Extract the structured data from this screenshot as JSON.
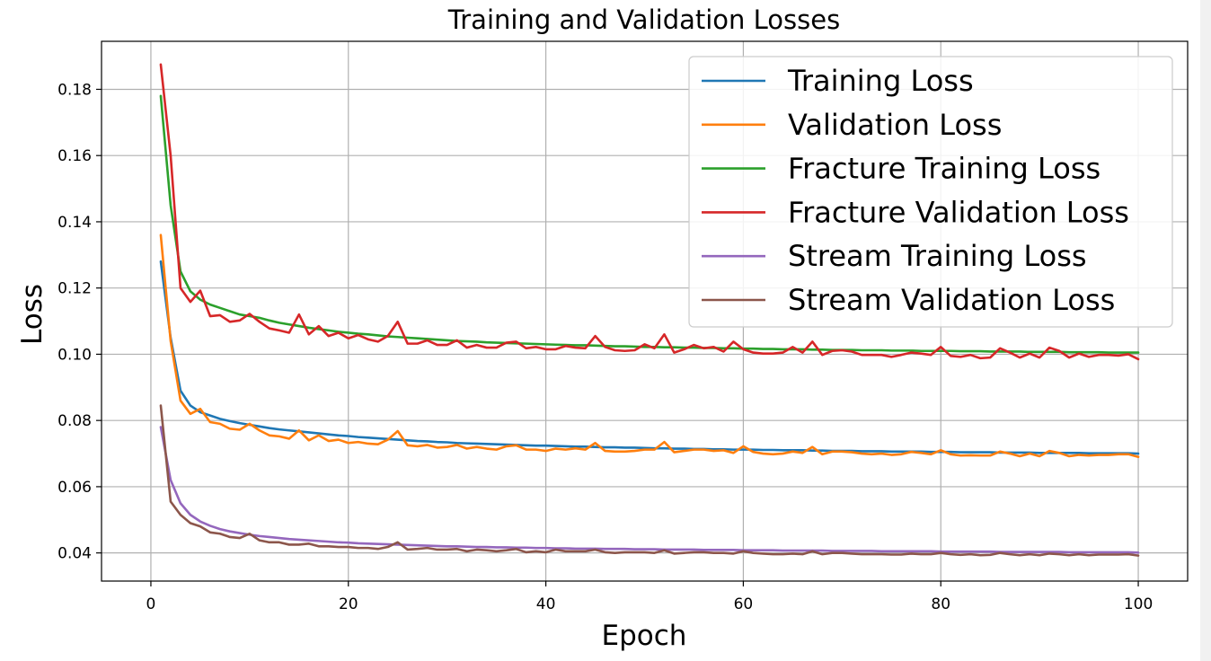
{
  "chart_data": {
    "type": "line",
    "title": "Training and Validation Losses",
    "xlabel": "Epoch",
    "ylabel": "Loss",
    "xlim": [
      -5,
      105
    ],
    "ylim": [
      0.0315,
      0.1945
    ],
    "xticks": [
      0,
      20,
      40,
      60,
      80,
      100
    ],
    "yticks": [
      0.04,
      0.06,
      0.08,
      0.1,
      0.12,
      0.14,
      0.16,
      0.18
    ],
    "xtick_labels": [
      "0",
      "20",
      "40",
      "60",
      "80",
      "100"
    ],
    "ytick_labels": [
      "0.04",
      "0.06",
      "0.08",
      "0.10",
      "0.12",
      "0.14",
      "0.16",
      "0.18"
    ],
    "grid": true,
    "legend_position": "top-right",
    "x": [
      1,
      2,
      3,
      4,
      5,
      6,
      7,
      8,
      9,
      10,
      11,
      12,
      13,
      14,
      15,
      16,
      17,
      18,
      19,
      20,
      21,
      22,
      23,
      24,
      25,
      26,
      27,
      28,
      29,
      30,
      31,
      32,
      33,
      34,
      35,
      36,
      37,
      38,
      39,
      40,
      41,
      42,
      43,
      44,
      45,
      46,
      47,
      48,
      49,
      50,
      51,
      52,
      53,
      54,
      55,
      56,
      57,
      58,
      59,
      60,
      61,
      62,
      63,
      64,
      65,
      66,
      67,
      68,
      69,
      70,
      71,
      72,
      73,
      74,
      75,
      76,
      77,
      78,
      79,
      80,
      81,
      82,
      83,
      84,
      85,
      86,
      87,
      88,
      89,
      90,
      91,
      92,
      93,
      94,
      95,
      96,
      97,
      98,
      99,
      100
    ],
    "series": [
      {
        "name": "Training Loss",
        "color": "#1f77b4",
        "values": [
          0.128,
          0.105,
          0.089,
          0.0845,
          0.0825,
          0.0815,
          0.0805,
          0.0798,
          0.0792,
          0.0787,
          0.0782,
          0.0777,
          0.0773,
          0.077,
          0.0767,
          0.0764,
          0.0761,
          0.0758,
          0.0755,
          0.0753,
          0.075,
          0.0748,
          0.0746,
          0.0744,
          0.0742,
          0.074,
          0.0738,
          0.0737,
          0.0735,
          0.0734,
          0.0732,
          0.0731,
          0.073,
          0.0729,
          0.0728,
          0.0727,
          0.0726,
          0.0725,
          0.0724,
          0.0724,
          0.0723,
          0.0722,
          0.0721,
          0.0721,
          0.072,
          0.0719,
          0.0719,
          0.0718,
          0.0718,
          0.0717,
          0.0716,
          0.0716,
          0.0715,
          0.0715,
          0.0714,
          0.0714,
          0.0713,
          0.0713,
          0.0712,
          0.0712,
          0.0712,
          0.0711,
          0.0711,
          0.071,
          0.071,
          0.071,
          0.0709,
          0.0709,
          0.0708,
          0.0708,
          0.0708,
          0.0707,
          0.0707,
          0.0707,
          0.0706,
          0.0706,
          0.0706,
          0.0706,
          0.0705,
          0.0705,
          0.0705,
          0.0704,
          0.0704,
          0.0704,
          0.0704,
          0.0703,
          0.0703,
          0.0703,
          0.0703,
          0.0702,
          0.0702,
          0.0702,
          0.0702,
          0.0702,
          0.0701,
          0.0701,
          0.0701,
          0.0701,
          0.0701,
          0.07
        ]
      },
      {
        "name": "Validation Loss",
        "color": "#ff7f0e",
        "values": [
          0.136,
          0.104,
          0.086,
          0.082,
          0.0835,
          0.0795,
          0.079,
          0.0775,
          0.0772,
          0.079,
          0.077,
          0.0755,
          0.0752,
          0.0745,
          0.077,
          0.074,
          0.0755,
          0.0738,
          0.0742,
          0.0732,
          0.0735,
          0.073,
          0.0728,
          0.0742,
          0.0768,
          0.0725,
          0.0722,
          0.0726,
          0.0718,
          0.072,
          0.0726,
          0.0715,
          0.072,
          0.0715,
          0.0712,
          0.0722,
          0.0725,
          0.0712,
          0.0712,
          0.0708,
          0.0715,
          0.0712,
          0.0716,
          0.0712,
          0.0732,
          0.0708,
          0.0706,
          0.0706,
          0.0708,
          0.0712,
          0.0712,
          0.0735,
          0.0704,
          0.0708,
          0.0712,
          0.0712,
          0.0708,
          0.071,
          0.0702,
          0.0722,
          0.0705,
          0.07,
          0.0698,
          0.07,
          0.0706,
          0.0702,
          0.072,
          0.0698,
          0.0706,
          0.0706,
          0.0704,
          0.07,
          0.0698,
          0.07,
          0.0696,
          0.0698,
          0.0705,
          0.0702,
          0.0698,
          0.071,
          0.0698,
          0.0694,
          0.0695,
          0.0694,
          0.0694,
          0.0706,
          0.07,
          0.0692,
          0.07,
          0.0692,
          0.0708,
          0.0702,
          0.0692,
          0.0696,
          0.0694,
          0.0696,
          0.0696,
          0.0698,
          0.0698,
          0.069
        ]
      },
      {
        "name": "Fracture Training Loss",
        "color": "#2ca02c",
        "values": [
          0.178,
          0.145,
          0.125,
          0.119,
          0.1165,
          0.115,
          0.114,
          0.113,
          0.112,
          0.1115,
          0.111,
          0.1102,
          0.1095,
          0.109,
          0.1085,
          0.108,
          0.1076,
          0.1072,
          0.1068,
          0.1065,
          0.1062,
          0.106,
          0.1057,
          0.1054,
          0.1052,
          0.105,
          0.1048,
          0.1046,
          0.1044,
          0.1042,
          0.104,
          0.1039,
          0.1038,
          0.1036,
          0.1035,
          0.1034,
          0.1033,
          0.1032,
          0.1031,
          0.103,
          0.1029,
          0.1028,
          0.1027,
          0.1027,
          0.1026,
          0.1025,
          0.1024,
          0.1024,
          0.1023,
          0.1022,
          0.1022,
          0.1021,
          0.1021,
          0.102,
          0.102,
          0.1019,
          0.1019,
          0.1018,
          0.1018,
          0.1017,
          0.1017,
          0.1016,
          0.1016,
          0.1015,
          0.1015,
          0.1015,
          0.1014,
          0.1014,
          0.1013,
          0.1013,
          0.1013,
          0.1012,
          0.1012,
          0.1012,
          0.1011,
          0.1011,
          0.1011,
          0.101,
          0.101,
          0.101,
          0.101,
          0.1009,
          0.1009,
          0.1009,
          0.1008,
          0.1008,
          0.1008,
          0.1008,
          0.1007,
          0.1007,
          0.1007,
          0.1007,
          0.1006,
          0.1006,
          0.1006,
          0.1006,
          0.1005,
          0.1005,
          0.1005,
          0.1005
        ]
      },
      {
        "name": "Fracture Validation Loss",
        "color": "#d62728",
        "values": [
          0.1875,
          0.16,
          0.12,
          0.1158,
          0.1192,
          0.1115,
          0.1118,
          0.1098,
          0.1102,
          0.1122,
          0.1098,
          0.1078,
          0.1072,
          0.1065,
          0.112,
          0.106,
          0.1085,
          0.1055,
          0.1065,
          0.1048,
          0.1058,
          0.1045,
          0.1038,
          0.1055,
          0.1098,
          0.1032,
          0.1032,
          0.1042,
          0.1028,
          0.1028,
          0.1042,
          0.102,
          0.1028,
          0.102,
          0.102,
          0.1035,
          0.1038,
          0.1018,
          0.1022,
          0.1015,
          0.1015,
          0.1025,
          0.102,
          0.1018,
          0.1055,
          0.1022,
          0.1012,
          0.101,
          0.1012,
          0.103,
          0.1018,
          0.106,
          0.1005,
          0.1015,
          0.1028,
          0.1018,
          0.1022,
          0.1008,
          0.1038,
          0.1015,
          0.1005,
          0.1002,
          0.1002,
          0.1005,
          0.1022,
          0.1005,
          0.1038,
          0.0998,
          0.101,
          0.1012,
          0.1008,
          0.0998,
          0.0998,
          0.0998,
          0.0992,
          0.0998,
          0.1005,
          0.1002,
          0.0998,
          0.1022,
          0.0995,
          0.0992,
          0.0998,
          0.0988,
          0.099,
          0.1018,
          0.1005,
          0.099,
          0.1002,
          0.099,
          0.102,
          0.101,
          0.099,
          0.1002,
          0.0992,
          0.0998,
          0.0998,
          0.0996,
          0.1,
          0.0985
        ]
      },
      {
        "name": "Stream Training Loss",
        "color": "#9467bd",
        "values": [
          0.078,
          0.062,
          0.055,
          0.0515,
          0.0495,
          0.0482,
          0.0472,
          0.0465,
          0.046,
          0.0455,
          0.0451,
          0.0448,
          0.0445,
          0.0442,
          0.044,
          0.0438,
          0.0436,
          0.0434,
          0.0432,
          0.0431,
          0.0429,
          0.0428,
          0.0427,
          0.0426,
          0.0425,
          0.0424,
          0.0423,
          0.0422,
          0.0421,
          0.042,
          0.042,
          0.0419,
          0.0418,
          0.0418,
          0.0417,
          0.0417,
          0.0416,
          0.0416,
          0.0415,
          0.0415,
          0.0414,
          0.0414,
          0.0413,
          0.0413,
          0.0413,
          0.0412,
          0.0412,
          0.0412,
          0.0411,
          0.0411,
          0.0411,
          0.041,
          0.041,
          0.041,
          0.041,
          0.0409,
          0.0409,
          0.0409,
          0.0409,
          0.0408,
          0.0408,
          0.0408,
          0.0408,
          0.0407,
          0.0407,
          0.0407,
          0.0407,
          0.0407,
          0.0406,
          0.0406,
          0.0406,
          0.0406,
          0.0406,
          0.0405,
          0.0405,
          0.0405,
          0.0405,
          0.0405,
          0.0405,
          0.0404,
          0.0404,
          0.0404,
          0.0404,
          0.0404,
          0.0404,
          0.0403,
          0.0403,
          0.0403,
          0.0403,
          0.0403,
          0.0403,
          0.0403,
          0.0402,
          0.0402,
          0.0402,
          0.0402,
          0.0402,
          0.0402,
          0.0402,
          0.0401
        ]
      },
      {
        "name": "Stream Validation Loss",
        "color": "#8c564b",
        "values": [
          0.0845,
          0.0555,
          0.0515,
          0.049,
          0.048,
          0.0462,
          0.0458,
          0.0448,
          0.0445,
          0.0458,
          0.0438,
          0.0432,
          0.0432,
          0.0425,
          0.0425,
          0.0428,
          0.042,
          0.042,
          0.0418,
          0.0418,
          0.0415,
          0.0415,
          0.0412,
          0.0418,
          0.0432,
          0.041,
          0.0412,
          0.0415,
          0.041,
          0.041,
          0.0412,
          0.0405,
          0.041,
          0.0408,
          0.0405,
          0.0408,
          0.0412,
          0.0402,
          0.0405,
          0.0402,
          0.041,
          0.0405,
          0.0405,
          0.0405,
          0.041,
          0.0402,
          0.04,
          0.0402,
          0.0402,
          0.0402,
          0.04,
          0.0408,
          0.0398,
          0.04,
          0.0402,
          0.0402,
          0.04,
          0.04,
          0.0398,
          0.0405,
          0.04,
          0.0398,
          0.0396,
          0.0396,
          0.0398,
          0.0396,
          0.0405,
          0.0396,
          0.04,
          0.04,
          0.0398,
          0.0396,
          0.0396,
          0.0396,
          0.0395,
          0.0395,
          0.0398,
          0.0396,
          0.0396,
          0.04,
          0.0396,
          0.0394,
          0.0396,
          0.0393,
          0.0394,
          0.04,
          0.0396,
          0.0393,
          0.0396,
          0.0393,
          0.0398,
          0.0396,
          0.0393,
          0.0396,
          0.0393,
          0.0395,
          0.0395,
          0.0395,
          0.0396,
          0.0392
        ]
      }
    ]
  }
}
